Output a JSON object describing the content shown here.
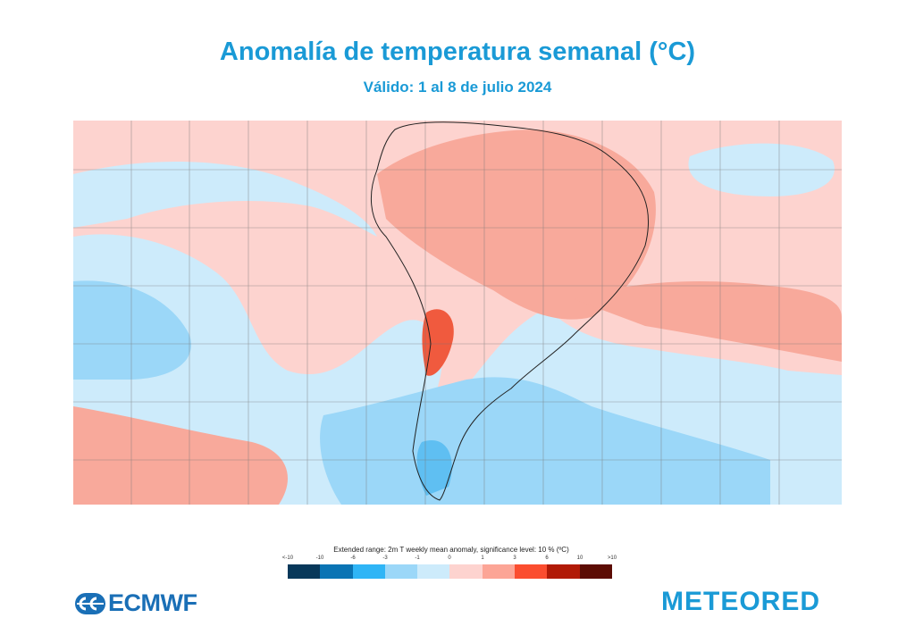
{
  "header": {
    "title": "Anomalía de temperatura semanal  (°C)",
    "subtitle": "Válido: 1 al 8 de julio 2024"
  },
  "legend": {
    "title": "Extended range: 2m T weekly mean anomaly, significance level: 10 % (ºC)",
    "ticks": [
      "<-10",
      "-10",
      "-6",
      "-3",
      "-1",
      "0",
      "1",
      "3",
      "6",
      "10",
      ">10"
    ],
    "colors": [
      "#07385a",
      "#0a74b4",
      "#2fb5f6",
      "#9bd7f8",
      "#cdebfb",
      "#fdd3cf",
      "#fca596",
      "#fb4d2f",
      "#b11a06",
      "#5c0c04"
    ]
  },
  "map": {
    "region": "South America",
    "colors": {
      "warm_light": "#fdd3cf",
      "warm": "#f8a99b",
      "warm_strong": "#f05a3e",
      "cool_light": "#cdebfb",
      "cool": "#9bd7f8",
      "cool_strong": "#5fbff2",
      "insignificant": "#ffffff"
    }
  },
  "logos": {
    "left": "ECMWF",
    "right": "METEORED"
  }
}
